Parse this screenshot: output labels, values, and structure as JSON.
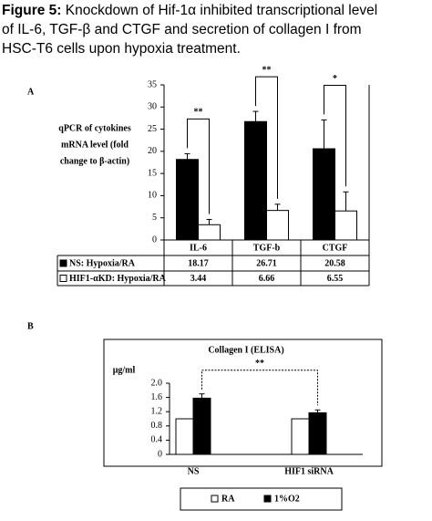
{
  "caption": {
    "label": "Figure 5:",
    "lines": [
      "Knockdown of Hif-1α inhibited transcriptional level",
      "of IL-6, TGF-β and CTGF and secretion of collagen I from",
      "HSC-T6 cells upon hypoxia treatment."
    ]
  },
  "chart_data": [
    {
      "type": "bar",
      "panel": "A",
      "y_label": [
        "qPCR of cytokines",
        "mRNA level (fold",
        "change to β-actin)"
      ],
      "categories": [
        "IL-6",
        "TGF-b",
        "CTGF"
      ],
      "series": [
        {
          "name": "NS: Hypoxia/RA",
          "color": "#000000",
          "values": [
            18.17,
            26.71,
            20.58
          ],
          "errors": [
            1.3,
            2.3,
            6.5
          ]
        },
        {
          "name": "HIF1-αKD: Hypoxia/RA",
          "color": "#ffffff",
          "values": [
            3.44,
            6.66,
            6.55
          ],
          "errors": [
            1.2,
            1.4,
            4.3
          ]
        }
      ],
      "significance": [
        "**",
        "**",
        "*"
      ],
      "ylim": [
        0,
        35
      ],
      "yticks": [
        0,
        5,
        10,
        15,
        20,
        25,
        30,
        35
      ]
    },
    {
      "type": "bar",
      "panel": "B",
      "title": "Collagen I (ELISA)",
      "y_label": "μg/ml",
      "categories": [
        "NS",
        "HIF1 siRNA"
      ],
      "series": [
        {
          "name": "RA",
          "color": "#ffffff",
          "values": [
            1.0,
            1.0
          ]
        },
        {
          "name": "1%O2",
          "color": "#000000",
          "values": [
            1.58,
            1.17
          ],
          "errors": [
            0.12,
            0.08
          ]
        }
      ],
      "significance": "**",
      "ylim": [
        0,
        2
      ],
      "yticks": [
        0,
        0.4,
        0.8,
        1.2,
        1.6,
        {
          "value": 2,
          "label": "2.0"
        }
      ]
    }
  ]
}
